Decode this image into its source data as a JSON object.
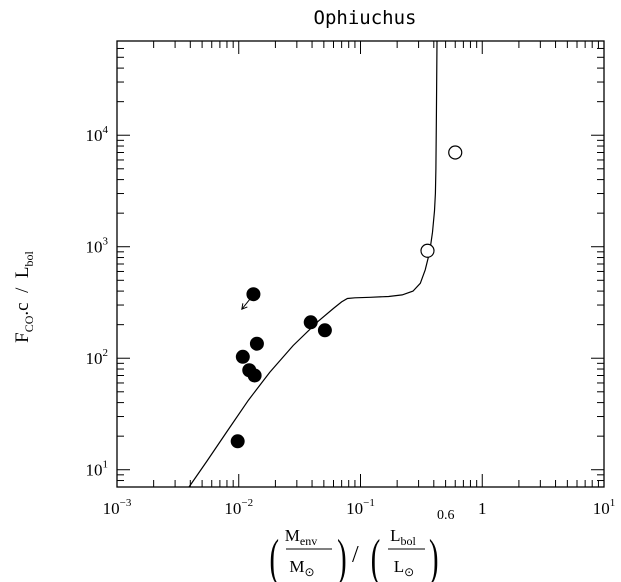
{
  "chart_data": {
    "type": "scatter",
    "title": "Ophiuchus",
    "xscale": "log",
    "yscale": "log",
    "xlim": [
      0.001,
      10
    ],
    "ylim": [
      7,
      70000
    ],
    "grid": false,
    "xlabel": {
      "numerator_1": "M",
      "numerator_1_sub": "env",
      "denominator_1": "M",
      "denominator_1_sub": "⊙",
      "separator": "/",
      "numerator_2": "L",
      "numerator_2_sub": "bol",
      "denominator_2": "L",
      "denominator_2_sub": "⊙",
      "exponent": "0.6"
    },
    "ylabel": {
      "part1": "F",
      "part1_sub": "CO",
      "part2": ".c  /  L",
      "part2_sub": "bol"
    },
    "x_ticks": [
      {
        "value": 0.001,
        "base": "10",
        "exp": "−3"
      },
      {
        "value": 0.01,
        "base": "10",
        "exp": "−2"
      },
      {
        "value": 0.1,
        "base": "10",
        "exp": "−1"
      },
      {
        "value": 1,
        "base": "1",
        "exp": ""
      },
      {
        "value": 10,
        "base": "10",
        "exp": "1"
      }
    ],
    "y_ticks": [
      {
        "value": 10,
        "base": "10",
        "exp": "1"
      },
      {
        "value": 100,
        "base": "10",
        "exp": "2"
      },
      {
        "value": 1000,
        "base": "10",
        "exp": "3"
      },
      {
        "value": 10000,
        "base": "10",
        "exp": "4"
      }
    ],
    "filled_points": [
      {
        "x": 0.0098,
        "y": 18
      },
      {
        "x": 0.0108,
        "y": 103
      },
      {
        "x": 0.0122,
        "y": 78
      },
      {
        "x": 0.0135,
        "y": 70
      },
      {
        "x": 0.0141,
        "y": 135
      },
      {
        "x": 0.0132,
        "y": 375
      },
      {
        "x": 0.039,
        "y": 210
      },
      {
        "x": 0.051,
        "y": 178
      }
    ],
    "open_points": [
      {
        "x": 0.355,
        "y": 920
      },
      {
        "x": 0.6,
        "y": 7000
      }
    ],
    "upper_limit_arrow": {
      "x1": 0.0125,
      "y1": 345,
      "x2": 0.0106,
      "y2": 275
    },
    "curve": [
      [
        0.0039,
        7
      ],
      [
        0.0055,
        12
      ],
      [
        0.008,
        22
      ],
      [
        0.012,
        42
      ],
      [
        0.018,
        75
      ],
      [
        0.028,
        130
      ],
      [
        0.045,
        215
      ],
      [
        0.06,
        280
      ],
      [
        0.07,
        320
      ],
      [
        0.078,
        343
      ],
      [
        0.09,
        348
      ],
      [
        0.12,
        352
      ],
      [
        0.17,
        358
      ],
      [
        0.22,
        370
      ],
      [
        0.27,
        400
      ],
      [
        0.31,
        470
      ],
      [
        0.34,
        620
      ],
      [
        0.37,
        900
      ],
      [
        0.39,
        1350
      ],
      [
        0.405,
        2100
      ],
      [
        0.412,
        3000
      ],
      [
        0.416,
        5000
      ],
      [
        0.42,
        15000
      ],
      [
        0.425,
        70000
      ]
    ]
  }
}
